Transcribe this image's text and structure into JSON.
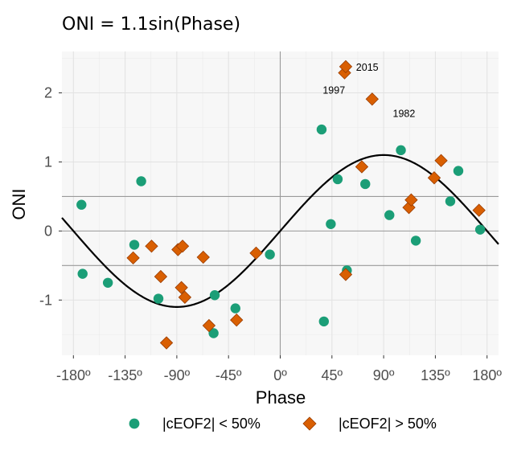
{
  "chart_data": {
    "type": "scatter",
    "title": "ONI = 1.1sin(Phase)",
    "xlabel": "Phase",
    "ylabel": "ONI",
    "xlim": [
      -190,
      190
    ],
    "ylim": [
      -1.8,
      2.6
    ],
    "x_ticks": [
      -180,
      -135,
      -90,
      -45,
      0,
      45,
      90,
      135,
      180
    ],
    "x_tick_labels": [
      "-180º",
      "-135º",
      "-90º",
      "-45º",
      "0º",
      "45º",
      "90º",
      "135º",
      "180º"
    ],
    "y_ticks": [
      -1,
      0,
      1,
      2
    ],
    "y_tick_labels": [
      "-1",
      "0",
      "1",
      "2"
    ],
    "grid": true,
    "legend_position": "bottom",
    "reference_lines": {
      "vertical": [
        0
      ],
      "horizontal": [
        0.5,
        0,
        -0.5
      ]
    },
    "curve": {
      "label": "1.1sin(Phase)",
      "amplitude": 1.1,
      "color": "#000000"
    },
    "series": [
      {
        "name": "|cEOF2| < 50%",
        "marker": "circle",
        "color": "#1b9e77",
        "points": [
          [
            -173,
            0.38
          ],
          [
            -172,
            -0.62
          ],
          [
            -150,
            -0.75
          ],
          [
            -121,
            0.72
          ],
          [
            -127,
            -0.2
          ],
          [
            -106,
            -0.98
          ],
          [
            -57,
            -0.93
          ],
          [
            -58,
            -1.48
          ],
          [
            -39,
            -1.12
          ],
          [
            -9,
            -0.34
          ],
          [
            36,
            1.47
          ],
          [
            38,
            -1.31
          ],
          [
            44,
            0.1
          ],
          [
            50,
            0.75
          ],
          [
            58,
            -0.57
          ],
          [
            74,
            0.68
          ],
          [
            95,
            0.23
          ],
          [
            105,
            1.17
          ],
          [
            118,
            -0.14
          ],
          [
            148,
            0.43
          ],
          [
            155,
            0.87
          ],
          [
            174,
            0.02
          ]
        ]
      },
      {
        "name": "|cEOF2| > 50%",
        "marker": "diamond",
        "color": "#d95f02",
        "points": [
          [
            -128,
            -0.39
          ],
          [
            -112,
            -0.22
          ],
          [
            -104,
            -0.66
          ],
          [
            -99,
            -1.62
          ],
          [
            -89,
            -0.27
          ],
          [
            -85,
            -0.22
          ],
          [
            -86,
            -0.82
          ],
          [
            -83,
            -0.96
          ],
          [
            -67,
            -0.38
          ],
          [
            -62,
            -1.37
          ],
          [
            -38,
            -1.29
          ],
          [
            -21,
            -0.32
          ],
          [
            57,
            -0.63
          ],
          [
            71,
            0.93
          ],
          [
            112,
            0.34
          ],
          [
            114,
            0.45
          ],
          [
            134,
            0.77
          ],
          [
            140,
            1.02
          ],
          [
            173,
            0.3
          ],
          [
            56,
            2.29
          ],
          [
            57,
            2.38
          ],
          [
            80,
            1.91
          ]
        ]
      }
    ],
    "annotations": [
      {
        "text": "2015",
        "x": 66,
        "y": 2.38
      },
      {
        "text": "1997",
        "x": 37,
        "y": 2.05
      },
      {
        "text": "1982",
        "x": 98,
        "y": 1.71
      }
    ]
  }
}
